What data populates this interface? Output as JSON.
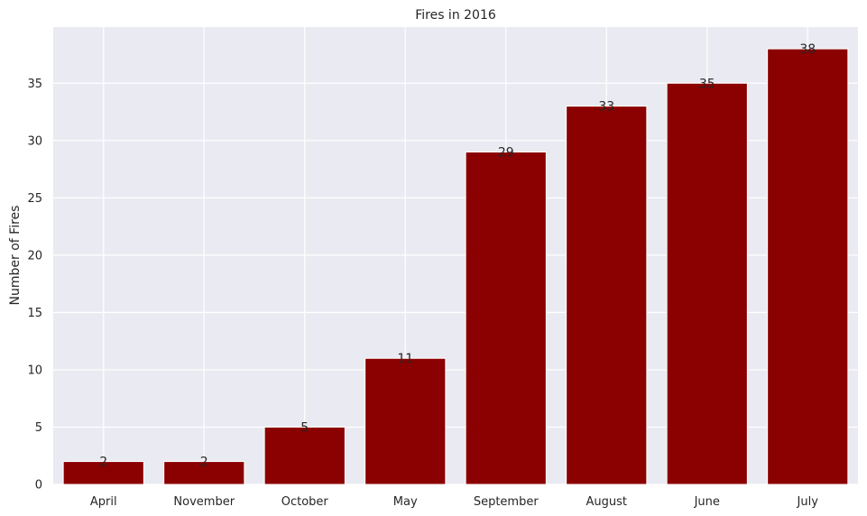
{
  "chart_data": {
    "type": "bar",
    "title": "Fires in 2016",
    "xlabel": "",
    "ylabel": "Number of Fires",
    "categories": [
      "April",
      "November",
      "October",
      "May",
      "September",
      "August",
      "June",
      "July"
    ],
    "values": [
      2,
      2,
      5,
      11,
      29,
      33,
      35,
      38
    ],
    "data_labels": [
      "2",
      "2",
      "5",
      "11",
      "29",
      "33",
      "35",
      "38"
    ],
    "yticks": [
      0,
      5,
      10,
      15,
      20,
      25,
      30,
      35
    ],
    "ylim": [
      0,
      39.9
    ],
    "grid": true,
    "legend": "none",
    "colors": {
      "bar": "#8b0000",
      "plot_bg": "#eaeaf2",
      "grid": "#ffffff",
      "text": "#262626"
    }
  }
}
